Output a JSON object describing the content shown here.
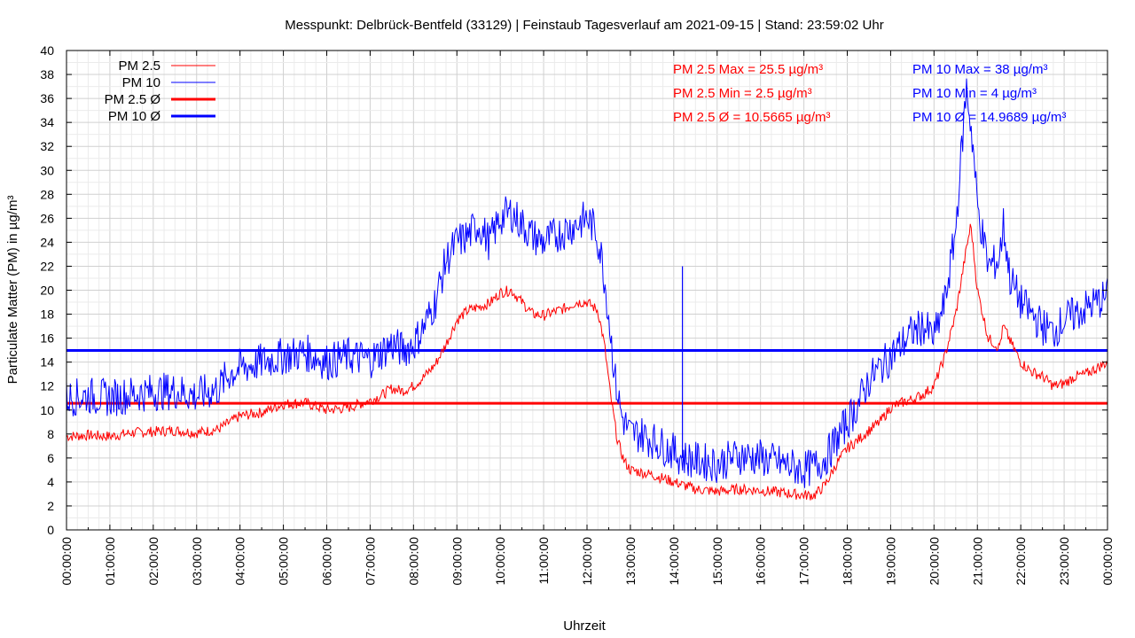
{
  "chart_data": {
    "type": "line",
    "title": "Messpunkt: Delbrück-Bentfeld (33129) | Feinstaub Tagesverlauf am 2021-09-15 | Stand: 23:59:02 Uhr",
    "xlabel": "Uhrzeit",
    "ylabel": "Particulate Matter (PM) in µg/m³",
    "ylim": [
      0,
      40
    ],
    "yticks": [
      "0",
      "2",
      "4",
      "6",
      "8",
      "10",
      "12",
      "14",
      "16",
      "18",
      "20",
      "22",
      "24",
      "26",
      "28",
      "30",
      "32",
      "34",
      "36",
      "38",
      "40"
    ],
    "xticks": [
      "00:00:00",
      "01:00:00",
      "02:00:00",
      "03:00:00",
      "04:00:00",
      "05:00:00",
      "06:00:00",
      "07:00:00",
      "08:00:00",
      "09:00:00",
      "10:00:00",
      "11:00:00",
      "12:00:00",
      "13:00:00",
      "14:00:00",
      "15:00:00",
      "16:00:00",
      "17:00:00",
      "18:00:00",
      "19:00:00",
      "20:00:00",
      "21:00:00",
      "22:00:00",
      "23:00:00",
      "00:00:00"
    ],
    "grid": true,
    "legend_position": "top-left",
    "x_unit": "hours",
    "series": [
      {
        "name": "PM 2.5",
        "color": "#ff0000",
        "style": "thin",
        "x": [
          0,
          0.5,
          1,
          1.5,
          2,
          2.5,
          3,
          3.5,
          4,
          4.5,
          5,
          5.5,
          6,
          6.5,
          7,
          7.25,
          7.5,
          7.75,
          8,
          8.25,
          8.5,
          8.75,
          9,
          9.25,
          9.5,
          9.75,
          10,
          10.25,
          10.5,
          10.75,
          11,
          11.25,
          11.5,
          11.75,
          12,
          12.25,
          12.4,
          12.55,
          12.7,
          12.85,
          13,
          13.25,
          13.5,
          14,
          14.5,
          15,
          15.5,
          16,
          16.5,
          17,
          17.25,
          17.5,
          17.75,
          18,
          18.25,
          18.5,
          18.75,
          19,
          19.25,
          19.5,
          19.75,
          20,
          20.25,
          20.5,
          20.75,
          20.85,
          21,
          21.25,
          21.5,
          21.6,
          21.75,
          22,
          22.25,
          22.5,
          22.75,
          23,
          23.25,
          23.5,
          23.75,
          24
        ],
        "y": [
          7.8,
          7.9,
          7.8,
          8.1,
          8.2,
          8.3,
          8.1,
          8.4,
          9.5,
          9.8,
          10.5,
          10.6,
          10.0,
          10.2,
          10.8,
          11.2,
          11.8,
          11.6,
          12.0,
          12.8,
          13.8,
          15.5,
          17.5,
          18.3,
          18.6,
          18.9,
          19.8,
          20.0,
          19.0,
          18.0,
          17.9,
          18.2,
          18.5,
          19.0,
          19.0,
          18.3,
          15.5,
          11.0,
          7.5,
          5.8,
          5.0,
          4.8,
          4.6,
          4.0,
          3.4,
          3.2,
          3.4,
          3.3,
          3.1,
          2.9,
          2.9,
          3.8,
          5.5,
          6.8,
          7.5,
          8.3,
          9.0,
          10.2,
          10.6,
          10.9,
          11.3,
          12.0,
          14.5,
          18.0,
          23.5,
          25.5,
          20.0,
          16.0,
          15.2,
          17.0,
          15.8,
          14.0,
          13.2,
          12.8,
          12.0,
          12.2,
          12.8,
          13.0,
          13.5,
          14.0
        ]
      },
      {
        "name": "PM 10",
        "color": "#0000ff",
        "style": "thin",
        "x": [
          0,
          0.5,
          1,
          1.5,
          2,
          2.5,
          3,
          3.5,
          3.75,
          4,
          4.5,
          5,
          5.5,
          6,
          6.5,
          7,
          7.25,
          7.5,
          7.75,
          8,
          8.25,
          8.5,
          8.75,
          9,
          9.25,
          9.5,
          9.75,
          10,
          10.25,
          10.5,
          10.75,
          11,
          11.25,
          11.5,
          11.75,
          12,
          12.2,
          12.35,
          12.5,
          12.65,
          12.8,
          13,
          13.25,
          13.5,
          14,
          14.2,
          14.5,
          15,
          15.5,
          16,
          16.5,
          17,
          17.25,
          17.5,
          17.75,
          18,
          18.25,
          18.5,
          18.75,
          19,
          19.25,
          19.5,
          19.75,
          20,
          20.25,
          20.5,
          20.6,
          20.75,
          20.9,
          21,
          21.25,
          21.5,
          21.6,
          21.75,
          22,
          22.25,
          22.5,
          22.75,
          23,
          23.25,
          23.5,
          23.75,
          24
        ],
        "y": [
          11.0,
          11.2,
          11.0,
          11.3,
          11.5,
          11.6,
          11.2,
          11.8,
          13.0,
          13.5,
          14.0,
          14.5,
          14.8,
          14.0,
          14.5,
          14.2,
          14.8,
          15.5,
          15.0,
          15.5,
          17.0,
          19.0,
          22.5,
          24.0,
          24.5,
          25.5,
          24.0,
          26.0,
          26.5,
          25.5,
          24.5,
          24.0,
          24.5,
          25.0,
          25.5,
          26.0,
          25.0,
          22.5,
          18.0,
          12.5,
          9.5,
          8.0,
          8.0,
          7.5,
          6.5,
          6.0,
          5.8,
          5.5,
          6.2,
          6.0,
          5.5,
          5.0,
          5.3,
          6.0,
          7.5,
          9.0,
          10.5,
          12.5,
          13.5,
          14.5,
          15.5,
          16.5,
          17.0,
          16.0,
          19.0,
          25.0,
          30.0,
          37.0,
          32.0,
          27.0,
          22.0,
          22.5,
          25.5,
          21.0,
          19.0,
          18.0,
          17.0,
          16.5,
          17.5,
          18.0,
          18.5,
          19.0,
          19.5
        ]
      },
      {
        "name": "PM 2.5 Ø",
        "color": "#ff0000",
        "style": "thick",
        "x": [
          0,
          24
        ],
        "y": [
          10.5665,
          10.5665
        ]
      },
      {
        "name": "PM 10 Ø",
        "color": "#0000ff",
        "style": "thick",
        "x": [
          0,
          24
        ],
        "y": [
          14.9689,
          14.9689
        ]
      }
    ],
    "spikes": [
      {
        "series": "PM 10",
        "x": 14.2,
        "y": 22
      }
    ],
    "stats": [
      {
        "text": "PM 2.5 Max = 25.5 µg/m³",
        "color": "#ff0000"
      },
      {
        "text": "PM 2.5 Min = 2.5 µg/m³",
        "color": "#ff0000"
      },
      {
        "text": "PM 2.5 Ø = 10.5665 µg/m³",
        "color": "#ff0000"
      },
      {
        "text": "PM 10 Max = 38 µg/m³",
        "color": "#0000ff"
      },
      {
        "text": "PM 10 Min = 4 µg/m³",
        "color": "#0000ff"
      },
      {
        "text": "PM 10 Ø = 14.9689 µg/m³",
        "color": "#0000ff"
      }
    ]
  }
}
